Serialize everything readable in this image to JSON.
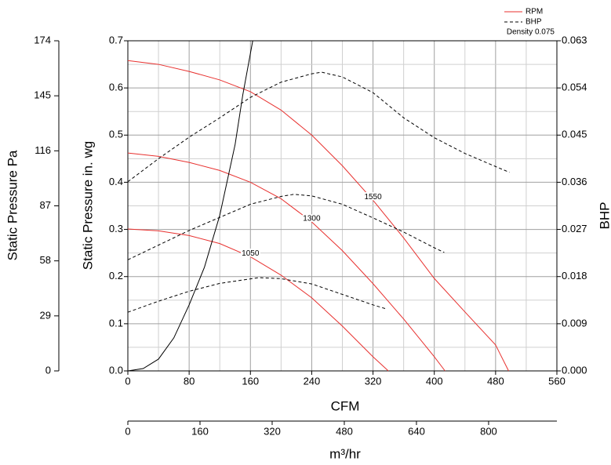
{
  "chart_data": {
    "type": "line",
    "xlabel": "CFM",
    "ylabel": "Static Pressure in. wg",
    "y2label": "BHP",
    "xlim": [
      0,
      560
    ],
    "xticks": [
      0,
      80,
      160,
      240,
      320,
      400,
      480,
      560
    ],
    "ylim": [
      0,
      0.7
    ],
    "yticks": [
      {
        "value": 0,
        "label": "0.0"
      },
      0.1,
      0.2,
      0.3,
      0.4,
      0.5,
      0.6,
      0.7
    ],
    "y2lim": [
      0,
      0.063
    ],
    "y2ticks": [
      {
        "value": 0,
        "label": "0.000"
      },
      0.009,
      0.018,
      0.027,
      0.036,
      0.045,
      0.054,
      0.063
    ],
    "grid": true,
    "pa_axis": {
      "label": "Static Pressure Pa",
      "lim": [
        0,
        174
      ],
      "ticks": [
        0,
        29,
        58,
        87,
        116,
        145,
        174
      ]
    },
    "m3_axis": {
      "label": "m³/hr",
      "lim": [
        0,
        951.4
      ],
      "ticks": [
        0,
        160,
        320,
        480,
        640,
        800
      ]
    },
    "legend": {
      "position": "top-right",
      "entries": [
        {
          "name": "RPM",
          "color": "#e8312f",
          "style": "solid"
        },
        {
          "name": "BHP",
          "color": "#000000",
          "style": "dashed"
        }
      ]
    },
    "note": "Density 0.075",
    "series": [
      {
        "label": "1550",
        "color": "#e8312f",
        "style": "solid",
        "x": [
          0,
          40,
          80,
          120,
          160,
          200,
          240,
          280,
          320,
          360,
          400,
          440,
          480,
          497
        ],
        "values": [
          0.658,
          0.65,
          0.635,
          0.617,
          0.592,
          0.553,
          0.5,
          0.435,
          0.362,
          0.282,
          0.196,
          0.125,
          0.055,
          0
        ]
      },
      {
        "label": "1300",
        "color": "#e8312f",
        "style": "solid",
        "x": [
          0,
          40,
          80,
          120,
          160,
          200,
          240,
          280,
          320,
          360,
          400,
          414
        ],
        "values": [
          0.462,
          0.455,
          0.442,
          0.425,
          0.4,
          0.365,
          0.316,
          0.255,
          0.185,
          0.11,
          0.03,
          0
        ]
      },
      {
        "label": "1050",
        "color": "#e8312f",
        "style": "solid",
        "x": [
          0,
          40,
          80,
          120,
          160,
          200,
          240,
          280,
          320,
          340
        ],
        "values": [
          0.301,
          0.297,
          0.287,
          0.27,
          0.242,
          0.203,
          0.155,
          0.095,
          0.03,
          0
        ]
      },
      {
        "color": "#000000",
        "style": "dashed",
        "axis": "y2",
        "x": [
          0,
          40,
          80,
          120,
          160,
          200,
          240,
          253,
          280,
          320,
          360,
          400,
          440,
          480,
          498
        ],
        "values": [
          0.0361,
          0.0405,
          0.0446,
          0.0483,
          0.0522,
          0.0551,
          0.0567,
          0.057,
          0.0561,
          0.0531,
          0.0483,
          0.0445,
          0.0415,
          0.039,
          0.0379
        ]
      },
      {
        "color": "#000000",
        "style": "dashed",
        "axis": "y2",
        "x": [
          0,
          40,
          80,
          120,
          160,
          200,
          217,
          240,
          280,
          320,
          360,
          400,
          413
        ],
        "values": [
          0.0212,
          0.024,
          0.0268,
          0.0293,
          0.0318,
          0.0333,
          0.0337,
          0.0334,
          0.0318,
          0.0292,
          0.0265,
          0.0235,
          0.0226
        ]
      },
      {
        "color": "#000000",
        "style": "dashed",
        "axis": "y2",
        "x": [
          0,
          40,
          80,
          120,
          171,
          200,
          240,
          280,
          320,
          338
        ],
        "values": [
          0.0112,
          0.0133,
          0.0152,
          0.0167,
          0.0178,
          0.0176,
          0.0166,
          0.0146,
          0.0126,
          0.0118
        ]
      },
      {
        "color": "#000000",
        "style": "solid",
        "x": [
          0,
          20,
          40,
          60,
          80,
          100,
          120,
          140,
          150,
          163
        ],
        "values": [
          0,
          0.005,
          0.025,
          0.07,
          0.14,
          0.22,
          0.33,
          0.48,
          0.585,
          0.7
        ]
      }
    ]
  }
}
